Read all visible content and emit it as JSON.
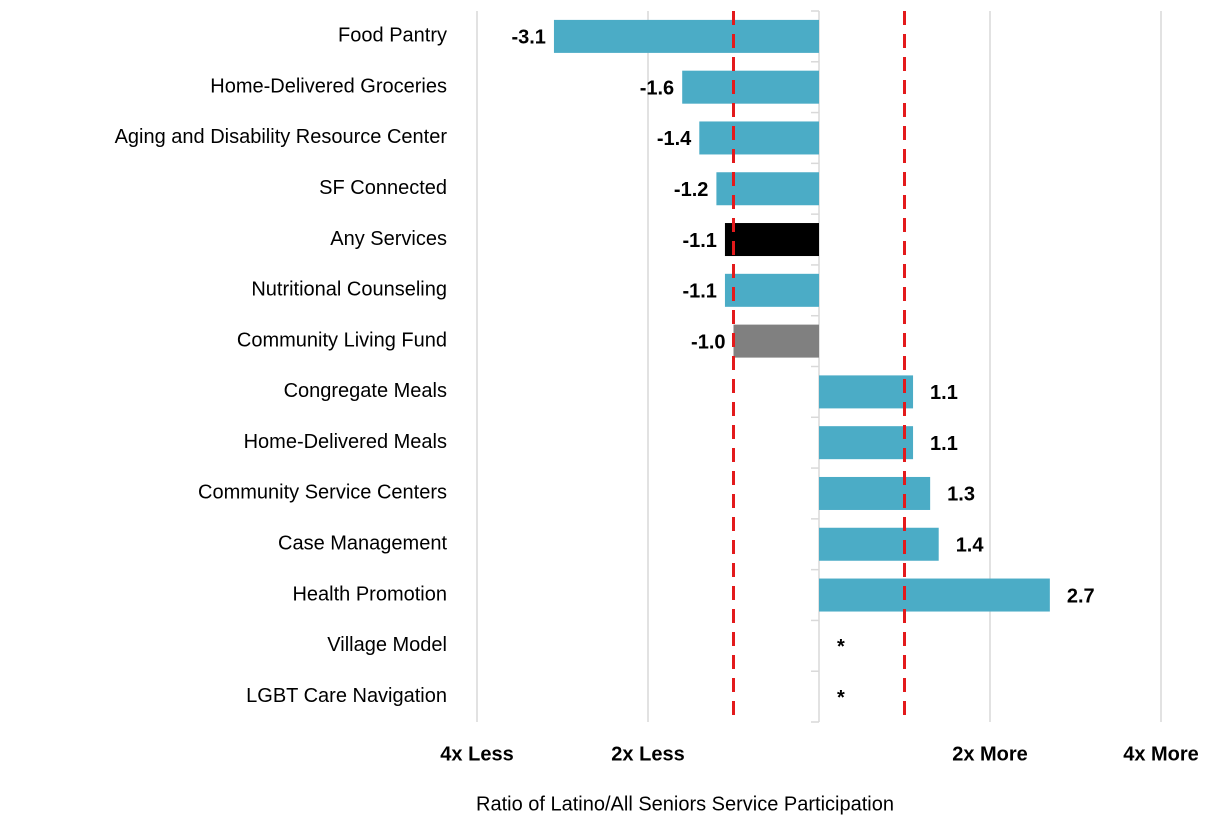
{
  "chart_data": {
    "type": "hbar",
    "categories": [
      "Food Pantry",
      "Home-Delivered Groceries",
      "Aging and Disability Resource Center",
      "SF Connected",
      "Any Services",
      "Nutritional Counseling",
      "Community Living Fund",
      "Congregate Meals",
      "Home-Delivered Meals",
      "Community Service Centers",
      "Case Management",
      "Health Promotion",
      "Village Model",
      "LGBT Care Navigation"
    ],
    "values": [
      -3.1,
      -1.6,
      -1.4,
      -1.2,
      -1.1,
      -1.1,
      -1.0,
      1.1,
      1.1,
      1.3,
      1.4,
      2.7,
      null,
      null
    ],
    "value_labels": [
      "-3.1",
      "-1.6",
      "-1.4",
      "-1.2",
      "-1.1",
      "-1.1",
      "-1.0",
      "1.1",
      "1.1",
      "1.3",
      "1.4",
      "2.7",
      "*",
      "*"
    ],
    "colors": [
      "#4bacc6",
      "#4bacc6",
      "#4bacc6",
      "#4bacc6",
      "#000000",
      "#4bacc6",
      "#808080",
      "#4bacc6",
      "#4bacc6",
      "#4bacc6",
      "#4bacc6",
      "#4bacc6",
      "#4bacc6",
      "#4bacc6"
    ],
    "xlim": [
      -4,
      4
    ],
    "xticks": [
      {
        "value": -4,
        "label": "4x Less"
      },
      {
        "value": -2,
        "label": "2x Less"
      },
      {
        "value": 2,
        "label": "2x More"
      },
      {
        "value": 4,
        "label": "4x More"
      }
    ],
    "reference_lines": [
      {
        "value": -1,
        "color": "#e31a1c"
      },
      {
        "value": 1,
        "color": "#e31a1c"
      }
    ],
    "xlabel": "Ratio of Latino/All Seniors Service Participation",
    "grid": true
  }
}
